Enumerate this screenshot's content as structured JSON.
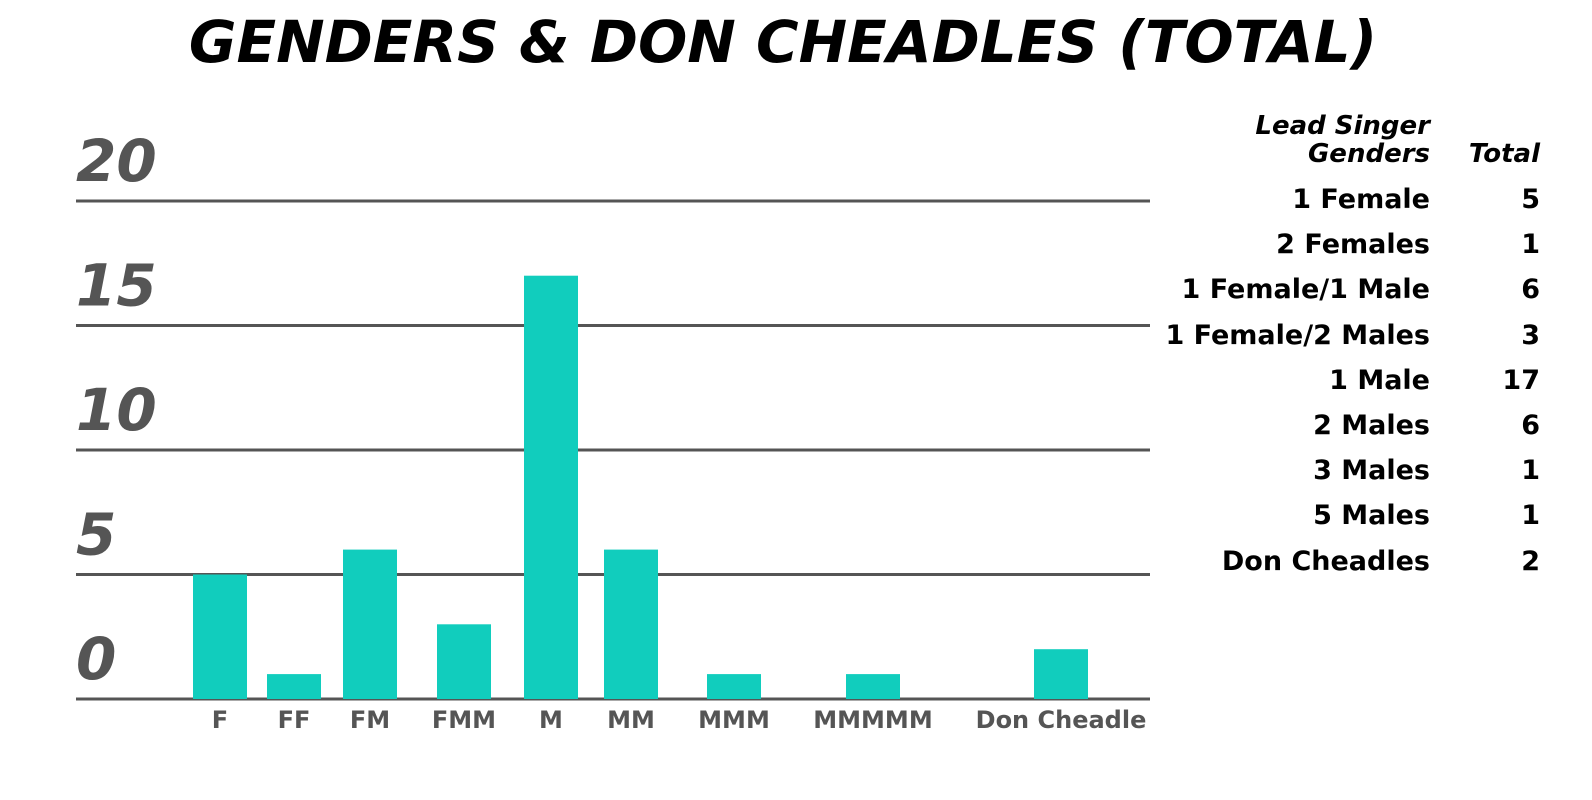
{
  "chart_data": {
    "type": "bar",
    "title": "GENDERS & DON CHEADLES (TOTAL)",
    "categories": [
      "F",
      "FF",
      "FM",
      "FMM",
      "M",
      "MM",
      "MMM",
      "MMMMM",
      "Don Cheadle"
    ],
    "values": [
      5,
      1,
      6,
      3,
      17,
      6,
      1,
      1,
      2
    ],
    "color": "#11cdbd",
    "ylim": [
      0,
      20
    ],
    "yticks": [
      0,
      5,
      10,
      15,
      20
    ],
    "grid": true
  },
  "table": {
    "headers": [
      "Lead Singer Genders",
      "Total"
    ],
    "rows": [
      [
        "1 Female",
        "5"
      ],
      [
        "2 Females",
        "1"
      ],
      [
        "1 Female/1 Male",
        "6"
      ],
      [
        "1 Female/2 Males",
        "3"
      ],
      [
        "1 Male",
        "17"
      ],
      [
        "2 Males",
        "6"
      ],
      [
        "3 Males",
        "1"
      ],
      [
        "5 Males",
        "1"
      ],
      [
        "Don Cheadles",
        "2"
      ]
    ]
  }
}
